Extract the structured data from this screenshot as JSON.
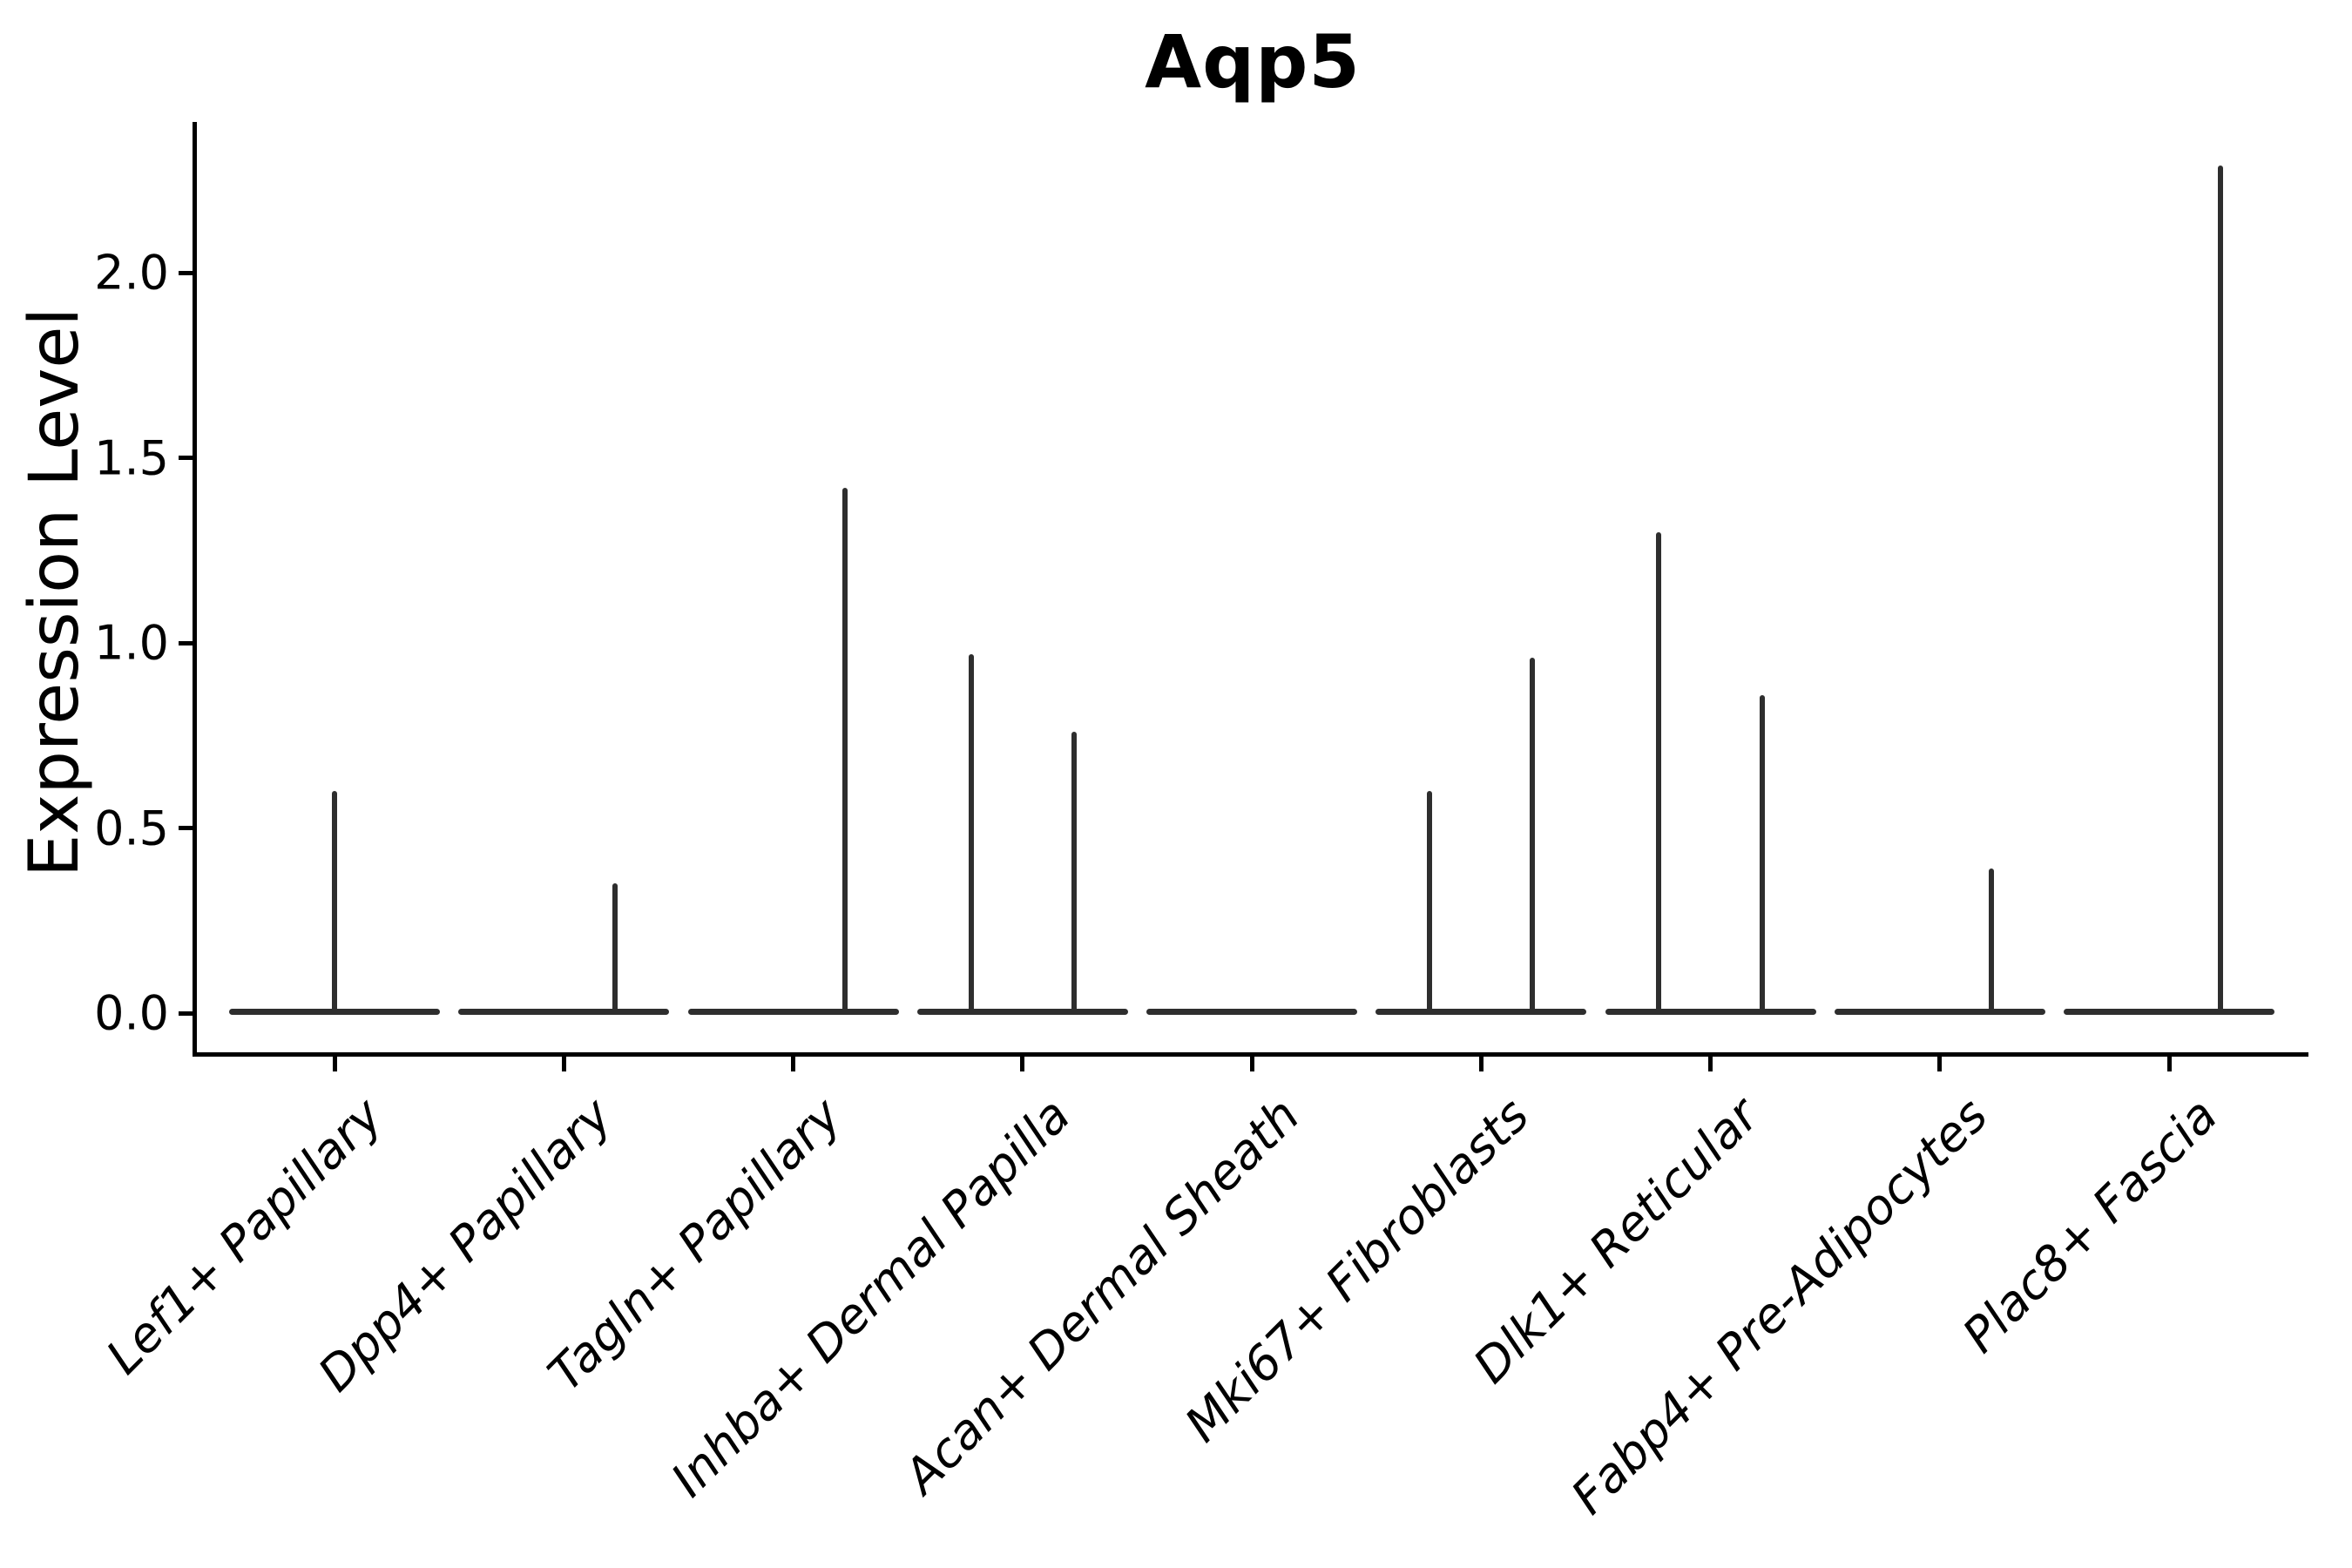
{
  "chart_data": {
    "type": "violin",
    "title": "Aqp5",
    "ylabel": "Expression Level",
    "xlabel": "",
    "ylim": [
      0,
      2.45
    ],
    "yticks": [
      0.0,
      0.5,
      1.0,
      1.5,
      2.0
    ],
    "grid": false,
    "legend": "none",
    "style_note": "single-cell expression violin plot; violins collapse to a flat line at 0 with thin vertical density spikes at the maximum expressed values",
    "categories": [
      "Lef1+ Papillary",
      "Dpp4+ Papillary",
      "Tagln+ Papillary",
      "Inhba+ Dermal Papilla",
      "Acan+ Dermal Sheath",
      "Mki67+ Fibroblasts",
      "Dlk1+ Reticular",
      "Fabp4+ Pre-Adipocytes",
      "Plac8+ Fascia"
    ],
    "violins": [
      {
        "category": "Lef1+ Papillary",
        "baseline": 0.0,
        "spikes": [
          {
            "offset": 0.0,
            "max": 0.6
          }
        ]
      },
      {
        "category": "Dpp4+ Papillary",
        "baseline": 0.0,
        "spikes": [
          {
            "offset": 0.225,
            "max": 0.35
          }
        ]
      },
      {
        "category": "Tagln+ Papillary",
        "baseline": 0.0,
        "spikes": [
          {
            "offset": 0.225,
            "max": 1.42
          }
        ]
      },
      {
        "category": "Inhba+ Dermal Papilla",
        "baseline": 0.0,
        "spikes": [
          {
            "offset": -0.225,
            "max": 0.97
          },
          {
            "offset": 0.225,
            "max": 0.76
          }
        ]
      },
      {
        "category": "Acan+ Dermal Sheath",
        "baseline": 0.0,
        "spikes": []
      },
      {
        "category": "Mki67+ Fibroblasts",
        "baseline": 0.0,
        "spikes": [
          {
            "offset": -0.225,
            "max": 0.6
          },
          {
            "offset": 0.225,
            "max": 0.96
          }
        ]
      },
      {
        "category": "Dlk1+ Reticular",
        "baseline": 0.0,
        "spikes": [
          {
            "offset": -0.225,
            "max": 1.3
          },
          {
            "offset": 0.225,
            "max": 0.86
          }
        ]
      },
      {
        "category": "Fabp4+ Pre-Adipocytes",
        "baseline": 0.0,
        "spikes": [
          {
            "offset": 0.225,
            "max": 0.39
          }
        ]
      },
      {
        "category": "Plac8+ Fascia",
        "baseline": 0.0,
        "spikes": [
          {
            "offset": 0.225,
            "max": 2.29
          }
        ]
      }
    ],
    "colors": {
      "violin_line": "#2e2e2e",
      "spine": "#000000",
      "text": "#000000",
      "background": "#ffffff"
    }
  }
}
